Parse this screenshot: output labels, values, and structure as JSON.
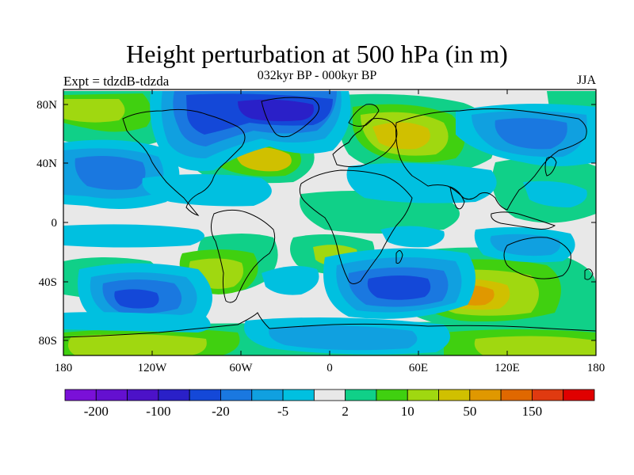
{
  "title": "Height perturbation at 500 hPa (in m)",
  "subtitle": "032kyr BP - 000kyr BP",
  "left_label": "Expt = tdzdB-tdzda",
  "right_label": "JJA",
  "y_ticks": [
    "80N",
    "40N",
    "0",
    "40S",
    "80S"
  ],
  "x_ticks": [
    "180",
    "120W",
    "60W",
    "0",
    "60E",
    "120E",
    "180"
  ],
  "colorbar": {
    "colors": [
      "#7a10d8",
      "#6410d0",
      "#4c12c8",
      "#2a20c8",
      "#1448d8",
      "#1a78e0",
      "#10a0e0",
      "#00c0e0",
      "#e8e8e8",
      "#10d088",
      "#40d010",
      "#a0d810",
      "#d0c000",
      "#e09800",
      "#e06800",
      "#e03a10",
      "#e00000"
    ],
    "labels": [
      {
        "text": "-200",
        "after": 1
      },
      {
        "text": "-100",
        "after": 3
      },
      {
        "text": "-20",
        "after": 5
      },
      {
        "text": "-5",
        "after": 7
      },
      {
        "text": "2",
        "after": 9
      },
      {
        "text": "10",
        "after": 11
      },
      {
        "text": "50",
        "after": 13
      },
      {
        "text": "150",
        "after": 15
      }
    ]
  },
  "chart_data": {
    "type": "heatmap",
    "title": "Height perturbation at 500 hPa (in m)",
    "subtitle": "032kyr BP - 000kyr BP",
    "left_label": "Expt = tdzdB-tdzda",
    "season": "JJA",
    "units": "m",
    "projection": "cylindrical equidistant",
    "xlim": [
      -180,
      180
    ],
    "ylim": [
      -90,
      90
    ],
    "contour_levels": [
      -200,
      -150,
      -100,
      -50,
      -20,
      -10,
      -5,
      -2,
      2,
      5,
      10,
      20,
      50,
      100,
      150,
      200
    ],
    "regions": [
      {
        "lon": -40,
        "lat": 75,
        "value": -100
      },
      {
        "lon": -70,
        "lat": 65,
        "value": -50
      },
      {
        "lon": -10,
        "lat": 72,
        "value": -20
      },
      {
        "lon": -150,
        "lat": 65,
        "value": 20
      },
      {
        "lon": -165,
        "lat": 38,
        "value": -20
      },
      {
        "lon": -120,
        "lat": 38,
        "value": -5
      },
      {
        "lon": -40,
        "lat": 45,
        "value": 50
      },
      {
        "lon": 50,
        "lat": 60,
        "value": 50
      },
      {
        "lon": 15,
        "lat": 65,
        "value": 10
      },
      {
        "lon": 130,
        "lat": 68,
        "value": -20
      },
      {
        "lon": 75,
        "lat": 40,
        "value": -10
      },
      {
        "lon": 35,
        "lat": 45,
        "value": -5
      },
      {
        "lon": 110,
        "lat": 35,
        "value": -10
      },
      {
        "lon": 160,
        "lat": 20,
        "value": 5
      },
      {
        "lon": -130,
        "lat": -55,
        "value": -50
      },
      {
        "lon": -160,
        "lat": -30,
        "value": -10
      },
      {
        "lon": -80,
        "lat": -45,
        "value": 10
      },
      {
        "lon": 40,
        "lat": -55,
        "value": -50
      },
      {
        "lon": 10,
        "lat": -25,
        "value": 10
      },
      {
        "lon": -20,
        "lat": -35,
        "value": -10
      },
      {
        "lon": 105,
        "lat": -50,
        "value": 50
      },
      {
        "lon": 130,
        "lat": -35,
        "value": 10
      },
      {
        "lon": 80,
        "lat": -20,
        "value": -5
      },
      {
        "lon": 150,
        "lat": -20,
        "value": -10
      },
      {
        "lon": -130,
        "lat": -85,
        "value": 10
      },
      {
        "lon": -20,
        "lat": -78,
        "value": -10
      },
      {
        "lon": 90,
        "lat": -85,
        "value": 10
      }
    ]
  }
}
